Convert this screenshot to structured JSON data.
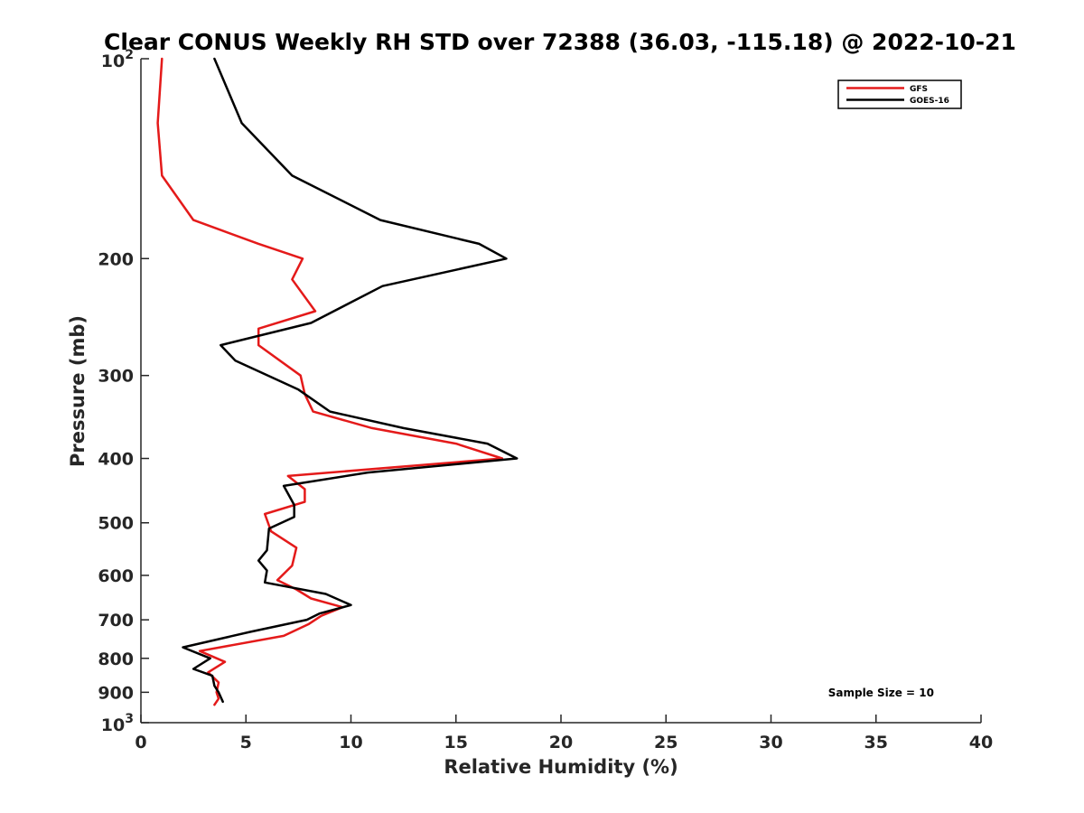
{
  "chart_data": {
    "type": "line",
    "title": "Clear CONUS Weekly RH STD over 72388 (36.03, -115.18) @ 2022-10-21",
    "xlabel": "Relative Humidity (%)",
    "ylabel": "Pressure (mb)",
    "xlim": [
      0,
      40
    ],
    "ylim": [
      100,
      1000
    ],
    "y_scale": "log",
    "y_reversed": true,
    "x_ticks": [
      "0",
      "5",
      "10",
      "15",
      "20",
      "25",
      "30",
      "35",
      "40"
    ],
    "y_ticks": [
      {
        "value": 100,
        "base": "10",
        "exp": "2"
      },
      {
        "value": 200,
        "label": "200"
      },
      {
        "value": 300,
        "label": "300"
      },
      {
        "value": 400,
        "label": "400"
      },
      {
        "value": 500,
        "label": "500"
      },
      {
        "value": 600,
        "label": "600"
      },
      {
        "value": 700,
        "label": "700"
      },
      {
        "value": 800,
        "label": "800"
      },
      {
        "value": 900,
        "label": "900"
      },
      {
        "value": 1000,
        "base": "10",
        "exp": "3"
      }
    ],
    "grid": false,
    "legend_position": "top-right",
    "annotation": "Sample Size = 10",
    "series": [
      {
        "name": "GFS",
        "color": "#e41a1a",
        "points": [
          [
            1.0,
            100
          ],
          [
            0.8,
            125
          ],
          [
            1.0,
            150
          ],
          [
            2.5,
            175
          ],
          [
            5.6,
            190
          ],
          [
            7.7,
            200
          ],
          [
            7.2,
            215
          ],
          [
            8.3,
            240
          ],
          [
            5.6,
            255
          ],
          [
            5.6,
            270
          ],
          [
            7.6,
            300
          ],
          [
            7.8,
            320
          ],
          [
            8.2,
            340
          ],
          [
            11.0,
            360
          ],
          [
            15.0,
            380
          ],
          [
            17.2,
            400
          ],
          [
            7.0,
            425
          ],
          [
            7.8,
            445
          ],
          [
            7.8,
            465
          ],
          [
            5.9,
            485
          ],
          [
            6.2,
            515
          ],
          [
            7.4,
            545
          ],
          [
            7.2,
            580
          ],
          [
            6.5,
            610
          ],
          [
            7.4,
            630
          ],
          [
            8.1,
            650
          ],
          [
            9.6,
            670
          ],
          [
            8.6,
            690
          ],
          [
            8.0,
            710
          ],
          [
            6.8,
            740
          ],
          [
            2.8,
            780
          ],
          [
            4.0,
            810
          ],
          [
            3.2,
            840
          ],
          [
            3.7,
            870
          ],
          [
            3.6,
            900
          ],
          [
            3.7,
            920
          ],
          [
            3.5,
            940
          ]
        ]
      },
      {
        "name": "GOES-16",
        "color": "#000000",
        "points": [
          [
            3.5,
            100
          ],
          [
            4.8,
            125
          ],
          [
            7.2,
            150
          ],
          [
            11.4,
            175
          ],
          [
            16.1,
            190
          ],
          [
            17.4,
            200
          ],
          [
            11.5,
            220
          ],
          [
            8.1,
            250
          ],
          [
            3.8,
            270
          ],
          [
            4.5,
            285
          ],
          [
            7.5,
            315
          ],
          [
            9.0,
            340
          ],
          [
            12.5,
            360
          ],
          [
            16.5,
            380
          ],
          [
            17.9,
            400
          ],
          [
            10.8,
            420
          ],
          [
            6.8,
            440
          ],
          [
            7.3,
            470
          ],
          [
            7.3,
            490
          ],
          [
            6.1,
            510
          ],
          [
            6.0,
            550
          ],
          [
            5.6,
            570
          ],
          [
            6.0,
            590
          ],
          [
            5.9,
            615
          ],
          [
            8.8,
            640
          ],
          [
            10.0,
            665
          ],
          [
            8.5,
            685
          ],
          [
            7.9,
            700
          ],
          [
            5.2,
            730
          ],
          [
            2.0,
            770
          ],
          [
            3.3,
            800
          ],
          [
            2.5,
            830
          ],
          [
            3.4,
            850
          ],
          [
            3.5,
            880
          ],
          [
            3.7,
            900
          ],
          [
            3.9,
            930
          ]
        ]
      }
    ]
  }
}
